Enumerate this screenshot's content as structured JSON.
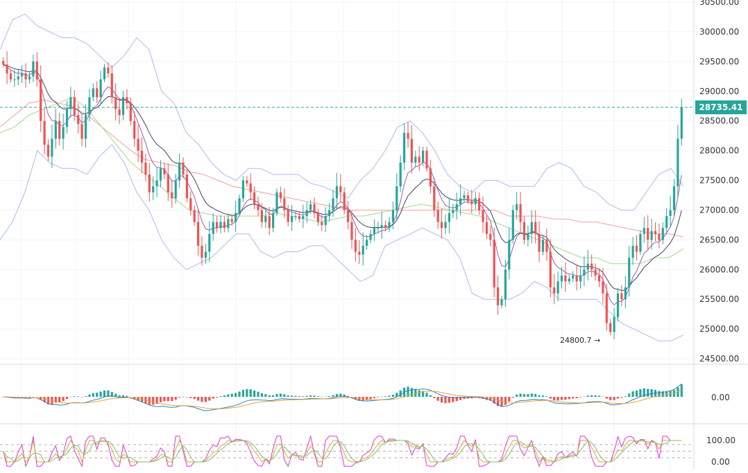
{
  "chart_data": {
    "type": "candlestick",
    "title": "",
    "main_panel": {
      "price_axis": {
        "ticks": [
          "30500.00",
          "30000.00",
          "29500.00",
          "29000.00",
          "28500.00",
          "28000.00",
          "27500.00",
          "27000.00",
          "26500.00",
          "26000.00",
          "25500.00",
          "25000.00",
          "24500.00"
        ],
        "ylim": [
          24350,
          30530
        ]
      },
      "last_price_label": "28735.41",
      "last_price": 28735.41,
      "low_annotation": {
        "text": "24800.7 →",
        "price": 24800.7
      },
      "grid": true,
      "colors": {
        "up": "#26a69a",
        "down": "#ef5350",
        "bollinger": "#aabbee",
        "ma_slow": "#f0a0a0",
        "ma_mid": "#a8d88a",
        "ma_fast": "#9b59b6",
        "ma_dark": "#404060",
        "ma_blue": "#2e7dbf",
        "ma_orange": "#e8a23a"
      },
      "closes": [
        29450,
        29300,
        29200,
        29200,
        29250,
        29300,
        29200,
        29250,
        29500,
        29200,
        28500,
        28100,
        27900,
        28200,
        28500,
        28200,
        28400,
        28700,
        28900,
        28600,
        28450,
        28200,
        28600,
        28900,
        29050,
        28900,
        29200,
        29400,
        29300,
        28900,
        28700,
        28600,
        28900,
        28800,
        28500,
        28200,
        28000,
        27800,
        27600,
        27300,
        27400,
        27500,
        27700,
        27600,
        27300,
        27200,
        27500,
        27800,
        27600,
        27200,
        27000,
        26800,
        26400,
        26200,
        26300,
        26600,
        26800,
        26700,
        26800,
        26700,
        26850,
        26800,
        26950,
        27200,
        27500,
        27450,
        27300,
        27100,
        27000,
        26800,
        26900,
        26700,
        26950,
        27300,
        27200,
        27000,
        26800,
        26900,
        26900,
        26850,
        26900,
        27000,
        27100,
        26950,
        26800,
        26750,
        26900,
        27000,
        27200,
        27400,
        27300,
        27000,
        26800,
        26500,
        26300,
        26250,
        26400,
        26500,
        26600,
        26700,
        26700,
        26750,
        26700,
        26800,
        27000,
        27400,
        27800,
        28300,
        28200,
        27800,
        27900,
        27800,
        28000,
        27700,
        27400,
        27000,
        26800,
        26700,
        26800,
        26950,
        27000,
        27100,
        27200,
        27250,
        27150,
        27100,
        27200,
        27000,
        26800,
        26600,
        26500,
        25700,
        25400,
        25500,
        26000,
        26500,
        27000,
        27100,
        26800,
        26500,
        26600,
        26800,
        26600,
        26300,
        26500,
        26300,
        25700,
        25600,
        25800,
        25900,
        25800,
        25850,
        25900,
        25800,
        25900,
        26000,
        26100,
        26000,
        25900,
        25800,
        25600,
        25100,
        24950,
        25200,
        25600,
        25500,
        25700,
        26200,
        26400,
        26300,
        26600,
        26700,
        26500,
        26650,
        26600,
        26500,
        26700,
        26900,
        27000,
        27400,
        28200,
        28735
      ],
      "bollinger_upper": [
        29700,
        30200,
        30300,
        30100,
        30000,
        29900,
        29900,
        29800,
        29600,
        29400,
        29600,
        29900,
        29700,
        29000,
        28800,
        28300,
        28100,
        27800,
        27600,
        27500,
        27700,
        27700,
        27600,
        27600,
        27600,
        27450,
        27400,
        27300,
        27200,
        27500,
        27700,
        28000,
        28400,
        28500,
        28300,
        28000,
        27600,
        27400,
        27300,
        27500,
        27500,
        27400,
        27400,
        27400,
        27700,
        27800,
        27700,
        27400,
        27300,
        27100,
        27000,
        27000,
        27300,
        27600,
        27700,
        27400
      ],
      "bollinger_lower": [
        26500,
        26800,
        27300,
        28000,
        27800,
        27700,
        27700,
        27600,
        27900,
        28100,
        27800,
        27300,
        27000,
        26500,
        26200,
        26000,
        26100,
        26200,
        26400,
        26600,
        26600,
        26300,
        26200,
        26300,
        26300,
        26400,
        26400,
        26200,
        26000,
        25800,
        25900,
        26400,
        26500,
        26600,
        26700,
        26600,
        26500,
        26200,
        25600,
        25500,
        25500,
        25500,
        25600,
        25800,
        25700,
        25500,
        25500,
        25500,
        25500,
        25300,
        25100,
        25000,
        24900,
        24800,
        24800,
        24900
      ],
      "ma_slow": [
        28400,
        28600,
        28800,
        28850,
        28800,
        28750,
        28600,
        28400,
        28200,
        28000,
        27850,
        27800,
        27750,
        27650,
        27600,
        27500,
        27400,
        27350,
        27300,
        27250,
        27200,
        27150,
        27100,
        27050,
        27000,
        27000,
        27000,
        27000,
        27000,
        27000,
        27000,
        27000,
        27000,
        27000,
        27000,
        26900,
        26900,
        26900,
        26850,
        26850,
        26800,
        26800,
        26750,
        26700,
        26650,
        26600,
        26600,
        26550
      ],
      "ma_mid": [
        28300,
        28400,
        28600,
        28700,
        28800,
        28900,
        28700,
        28400,
        28100,
        27800,
        27600,
        27400,
        27200,
        27000,
        26950,
        26900,
        26900,
        26900,
        26900,
        26950,
        26900,
        26850,
        26800,
        26850,
        26900,
        26900,
        26950,
        27000,
        27050,
        27100,
        27050,
        27000,
        26950,
        26900,
        26800,
        26700,
        26600,
        26500,
        26400,
        26300,
        26200,
        26200,
        26100,
        26100,
        26100,
        26200,
        26200,
        26350
      ],
      "oscillators": {
        "macd_axis_label": "0.00",
        "stoch_axis_labels": [
          "100.00",
          "0.00"
        ]
      }
    }
  }
}
